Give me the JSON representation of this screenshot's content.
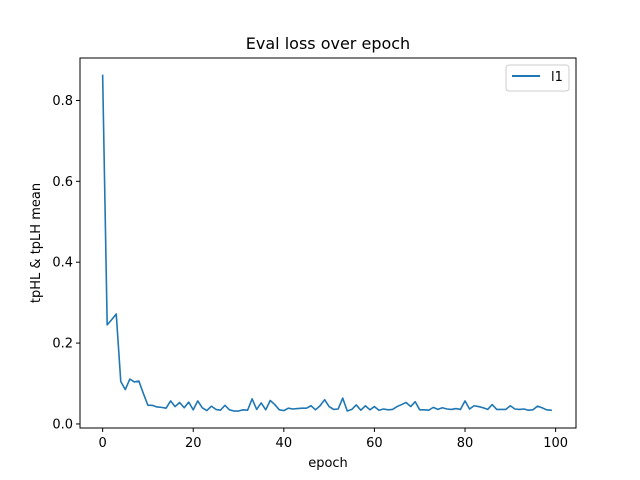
{
  "chart_data": {
    "type": "line",
    "title": "Eval loss over epoch",
    "xlabel": "epoch",
    "ylabel": "tpHL & tpLH mean",
    "xlim": [
      -5,
      104.5
    ],
    "ylim": [
      -0.01,
      0.905
    ],
    "xticks": [
      0,
      20,
      40,
      60,
      80,
      100
    ],
    "yticks": [
      0.0,
      0.2,
      0.4,
      0.6,
      0.8
    ],
    "xtick_labels": [
      "0",
      "20",
      "40",
      "60",
      "80",
      "100"
    ],
    "ytick_labels": [
      "0.0",
      "0.2",
      "0.4",
      "0.6",
      "0.8"
    ],
    "grid": false,
    "legend_position": "top-right",
    "series": [
      {
        "name": "l1",
        "color": "#1f77b4",
        "x": [
          0,
          1,
          2,
          3,
          4,
          5,
          6,
          7,
          8,
          9,
          10,
          11,
          12,
          13,
          14,
          15,
          16,
          17,
          18,
          19,
          20,
          21,
          22,
          23,
          24,
          25,
          26,
          27,
          28,
          29,
          30,
          31,
          32,
          33,
          34,
          35,
          36,
          37,
          38,
          39,
          40,
          41,
          42,
          43,
          44,
          45,
          46,
          47,
          48,
          49,
          50,
          51,
          52,
          53,
          54,
          55,
          56,
          57,
          58,
          59,
          60,
          61,
          62,
          63,
          64,
          65,
          66,
          67,
          68,
          69,
          70,
          71,
          72,
          73,
          74,
          75,
          76,
          77,
          78,
          79,
          80,
          81,
          82,
          83,
          84,
          85,
          86,
          87,
          88,
          89,
          90,
          91,
          92,
          93,
          94,
          95,
          96,
          97,
          98,
          99
        ],
        "values": [
          0.862,
          0.245,
          0.258,
          0.272,
          0.105,
          0.085,
          0.111,
          0.104,
          0.106,
          0.075,
          0.046,
          0.046,
          0.042,
          0.041,
          0.039,
          0.057,
          0.043,
          0.053,
          0.04,
          0.054,
          0.035,
          0.057,
          0.04,
          0.033,
          0.044,
          0.036,
          0.034,
          0.046,
          0.035,
          0.032,
          0.032,
          0.035,
          0.034,
          0.062,
          0.036,
          0.052,
          0.035,
          0.058,
          0.048,
          0.035,
          0.033,
          0.039,
          0.037,
          0.038,
          0.039,
          0.039,
          0.045,
          0.035,
          0.045,
          0.06,
          0.043,
          0.036,
          0.037,
          0.064,
          0.032,
          0.036,
          0.047,
          0.034,
          0.045,
          0.035,
          0.043,
          0.034,
          0.037,
          0.035,
          0.036,
          0.043,
          0.048,
          0.053,
          0.043,
          0.055,
          0.035,
          0.035,
          0.034,
          0.041,
          0.036,
          0.04,
          0.037,
          0.036,
          0.038,
          0.036,
          0.057,
          0.037,
          0.045,
          0.043,
          0.04,
          0.036,
          0.048,
          0.036,
          0.036,
          0.036,
          0.045,
          0.037,
          0.036,
          0.037,
          0.034,
          0.035,
          0.044,
          0.04,
          0.035,
          0.034
        ]
      }
    ]
  }
}
